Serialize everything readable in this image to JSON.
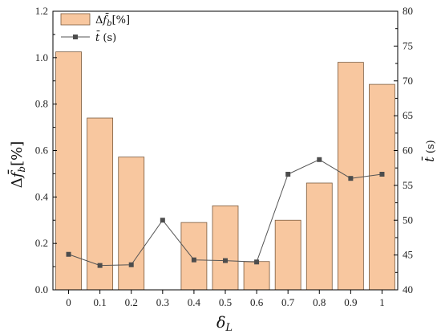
{
  "chart_data": {
    "type": "bar",
    "categories": [
      "0",
      "0.1",
      "0.2",
      "0.3",
      "0.4",
      "0.5",
      "0.6",
      "0.7",
      "0.8",
      "0.9",
      "1"
    ],
    "series": [
      {
        "name": "Δf̄_b[%]",
        "kind": "bar",
        "axis": "left",
        "values": [
          1.025,
          0.74,
          0.572,
          0.0,
          0.29,
          0.362,
          0.122,
          0.3,
          0.46,
          0.98,
          0.885
        ]
      },
      {
        "name": "t̄ (s)",
        "kind": "line",
        "axis": "right",
        "values": [
          45.1,
          43.5,
          43.6,
          50.0,
          44.3,
          44.2,
          44.0,
          56.6,
          58.7,
          56.0,
          56.6
        ]
      }
    ],
    "xlabel": "δ_L",
    "ylabel_left": "Δf̄_b[%]",
    "ylabel_right": "t̄ (s)",
    "ylim_left": [
      0,
      1.2
    ],
    "ylim_right": [
      40,
      80
    ],
    "yticks_left": [
      "0.0",
      "0.2",
      "0.4",
      "0.6",
      "0.8",
      "1.0",
      "1.2"
    ],
    "yticks_right": [
      "40",
      "45",
      "50",
      "55",
      "60",
      "65",
      "70",
      "75",
      "80"
    ],
    "legend": {
      "position": "top-left",
      "entries": [
        {
          "label_main": "Δ",
          "label_var": "f̄",
          "label_sub": "b",
          "label_tail": "[%]"
        },
        {
          "label_var": "t̄",
          "label_tail": " (s)"
        }
      ]
    },
    "grid": false,
    "colors": {
      "bar_fill": "#f8c79f",
      "bar_edge": "#7a5a3d",
      "line": "#555555",
      "marker": "#4d4d4d",
      "axis": "#000000"
    }
  }
}
